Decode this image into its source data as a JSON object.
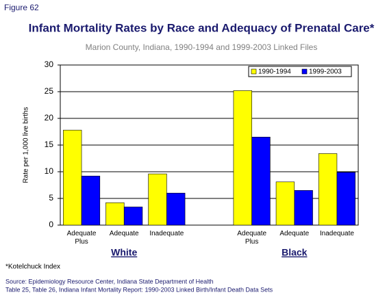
{
  "chart_data": {
    "type": "bar",
    "figure_label": "Figure 62",
    "title": "Infant Mortality Rates by Race and Adequacy of Prenatal Care*",
    "subtitle": "Marion County, Indiana, 1990-1994 and 1999-2003 Linked Files",
    "y_label": "Rate per 1,000 live births",
    "categories": [
      "Adequate Plus",
      "Adequate",
      "Inadequate",
      null,
      "Adequate Plus",
      "Adequate",
      "Inadequate"
    ],
    "groups": [
      "White",
      "Black"
    ],
    "series": [
      {
        "name": "1990-1994",
        "color": "#ffff00",
        "values": [
          17.8,
          4.2,
          9.6,
          null,
          25.2,
          8.1,
          13.4
        ]
      },
      {
        "name": "1999-2003",
        "color": "#0000ff",
        "values": [
          9.2,
          3.4,
          6.0,
          null,
          16.5,
          6.5,
          9.9
        ]
      }
    ],
    "ylim": [
      0,
      30
    ],
    "yticks": [
      0,
      5,
      10,
      15,
      20,
      25,
      30
    ],
    "grid": true,
    "legend": "top-right",
    "footnote": "*Kotelchuck Index",
    "source": [
      "Source: Epidemiology Resource Center, Indiana State Department of Health",
      "Table 25, Table 26, Indiana Infant Mortality Report: 1990-2003 Linked Birth/Infant Death Data Sets"
    ]
  }
}
